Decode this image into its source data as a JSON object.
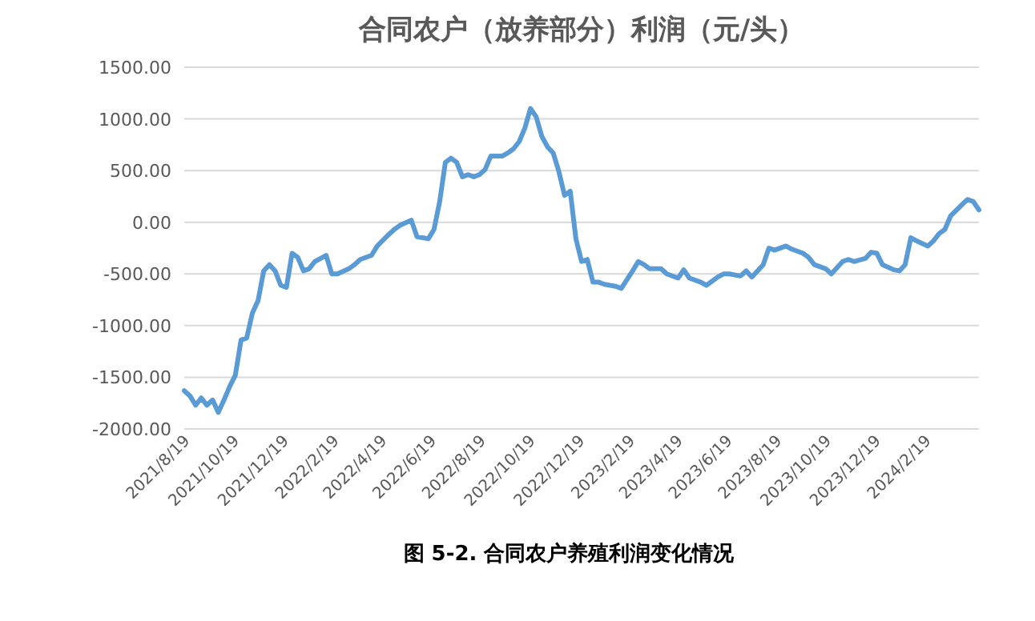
{
  "chart_data": {
    "type": "line",
    "title": "合同农户（放养部分）利润（元/头）",
    "annotations": [
      "图 5-2.  合同农户养殖利润变化情况"
    ],
    "xlim": [
      "2021-08-19",
      "2024-04-25"
    ],
    "xticks": [
      {
        "value": "2021-08-19",
        "label": "2021/8/19"
      },
      {
        "value": "2021-10-19",
        "label": "2021/10/19"
      },
      {
        "value": "2021-12-19",
        "label": "2021/12/19"
      },
      {
        "value": "2022-02-19",
        "label": "2022/2/19"
      },
      {
        "value": "2022-04-19",
        "label": "2022/4/19"
      },
      {
        "value": "2022-06-19",
        "label": "2022/6/19"
      },
      {
        "value": "2022-08-19",
        "label": "2022/8/19"
      },
      {
        "value": "2022-10-19",
        "label": "2022/10/19"
      },
      {
        "value": "2022-12-19",
        "label": "2022/12/19"
      },
      {
        "value": "2023-02-19",
        "label": "2023/2/19"
      },
      {
        "value": "2023-04-19",
        "label": "2023/4/19"
      },
      {
        "value": "2023-06-19",
        "label": "2023/6/19"
      },
      {
        "value": "2023-08-19",
        "label": "2023/8/19"
      },
      {
        "value": "2023-10-19",
        "label": "2023/10/19"
      },
      {
        "value": "2023-12-19",
        "label": "2023/12/19"
      },
      {
        "value": "2024-02-19",
        "label": "2024/2/19"
      }
    ],
    "ylim": [
      -2000,
      1500
    ],
    "yticks": [
      {
        "value": -2000,
        "label": "-2000.00"
      },
      {
        "value": -1500,
        "label": "-1500.00"
      },
      {
        "value": -1000,
        "label": "-1000.00"
      },
      {
        "value": -500,
        "label": "-500.00"
      },
      {
        "value": 0,
        "label": "0.00"
      },
      {
        "value": 500,
        "label": "500.00"
      },
      {
        "value": 1000,
        "label": "1000.00"
      },
      {
        "value": 1500,
        "label": "1500.00"
      }
    ],
    "grid": "y",
    "marker": "none",
    "line_style": "solid",
    "series": [
      {
        "color": "#5b9bd5",
        "x": [
          "2021-08-19",
          "2021-08-26",
          "2021-09-02",
          "2021-09-09",
          "2021-09-16",
          "2021-09-23",
          "2021-09-30",
          "2021-10-07",
          "2021-10-14",
          "2021-10-21",
          "2021-10-28",
          "2021-11-04",
          "2021-11-11",
          "2021-11-18",
          "2021-11-25",
          "2021-12-02",
          "2021-12-09",
          "2021-12-16",
          "2021-12-23",
          "2021-12-30",
          "2022-01-06",
          "2022-01-13",
          "2022-01-20",
          "2022-01-27",
          "2022-02-10",
          "2022-02-17",
          "2022-02-24",
          "2022-03-10",
          "2022-03-17",
          "2022-03-24",
          "2022-04-07",
          "2022-04-14",
          "2022-04-28",
          "2022-05-05",
          "2022-05-12",
          "2022-05-26",
          "2022-06-02",
          "2022-06-16",
          "2022-06-23",
          "2022-06-30",
          "2022-07-07",
          "2022-07-14",
          "2022-07-21",
          "2022-07-28",
          "2022-08-04",
          "2022-08-11",
          "2022-08-18",
          "2022-08-25",
          "2022-09-01",
          "2022-09-15",
          "2022-09-22",
          "2022-09-29",
          "2022-10-06",
          "2022-10-13",
          "2022-10-20",
          "2022-10-27",
          "2022-11-03",
          "2022-11-10",
          "2022-11-17",
          "2022-11-24",
          "2022-12-01",
          "2022-12-08",
          "2022-12-15",
          "2022-12-22",
          "2022-12-29",
          "2023-01-05",
          "2023-01-12",
          "2023-01-19",
          "2023-02-02",
          "2023-02-09",
          "2023-02-23",
          "2023-03-02",
          "2023-03-09",
          "2023-03-16",
          "2023-03-30",
          "2023-04-06",
          "2023-04-20",
          "2023-04-27",
          "2023-05-04",
          "2023-05-18",
          "2023-05-25",
          "2023-06-08",
          "2023-06-15",
          "2023-06-22",
          "2023-07-06",
          "2023-07-13",
          "2023-07-20",
          "2023-08-03",
          "2023-08-10",
          "2023-08-17",
          "2023-08-31",
          "2023-09-07",
          "2023-09-21",
          "2023-09-28",
          "2023-10-05",
          "2023-10-19",
          "2023-10-26",
          "2023-11-09",
          "2023-11-16",
          "2023-11-23",
          "2023-12-07",
          "2023-12-14",
          "2023-12-21",
          "2023-12-28",
          "2024-01-11",
          "2024-01-18",
          "2024-01-25",
          "2024-02-01",
          "2024-02-08",
          "2024-02-22",
          "2024-02-29",
          "2024-03-07",
          "2024-03-14",
          "2024-03-21",
          "2024-04-04",
          "2024-04-11",
          "2024-04-18",
          "2024-04-25"
        ],
        "values": [
          -1630,
          -1680,
          -1770,
          -1700,
          -1770,
          -1720,
          -1840,
          -1720,
          -1590,
          -1480,
          -1140,
          -1120,
          -880,
          -760,
          -470,
          -410,
          -470,
          -610,
          -630,
          -300,
          -340,
          -470,
          -450,
          -380,
          -320,
          -500,
          -500,
          -450,
          -410,
          -360,
          -320,
          -230,
          -120,
          -70,
          -30,
          20,
          -140,
          -160,
          -70,
          200,
          580,
          620,
          580,
          440,
          460,
          440,
          460,
          510,
          640,
          640,
          670,
          710,
          780,
          910,
          1100,
          1020,
          830,
          730,
          670,
          490,
          260,
          300,
          -160,
          -380,
          -360,
          -580,
          -580,
          -600,
          -620,
          -640,
          -470,
          -380,
          -410,
          -450,
          -450,
          -500,
          -540,
          -460,
          -540,
          -580,
          -610,
          -530,
          -500,
          -500,
          -520,
          -470,
          -530,
          -410,
          -250,
          -270,
          -230,
          -260,
          -300,
          -340,
          -410,
          -450,
          -500,
          -380,
          -360,
          -380,
          -350,
          -290,
          -300,
          -410,
          -460,
          -470,
          -410,
          -150,
          -180,
          -230,
          -180,
          -110,
          -70,
          60,
          170,
          220,
          200,
          120
        ]
      }
    ]
  }
}
